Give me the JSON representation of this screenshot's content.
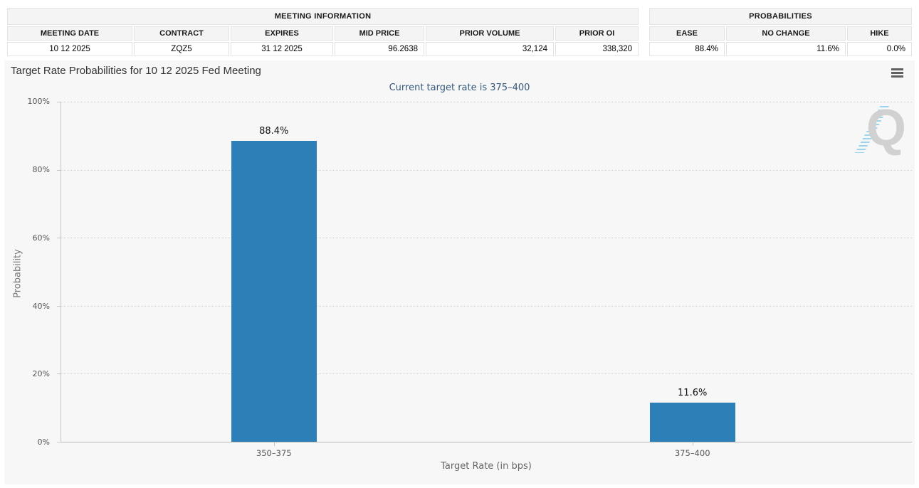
{
  "meeting_information": {
    "title": "MEETING INFORMATION",
    "columns": [
      "MEETING DATE",
      "CONTRACT",
      "EXPIRES",
      "MID PRICE",
      "PRIOR VOLUME",
      "PRIOR OI"
    ],
    "values": [
      "10 12 2025",
      "ZQZ5",
      "31 12 2025",
      "96.2638",
      "32,124",
      "338,320"
    ]
  },
  "probabilities": {
    "title": "PROBABILITIES",
    "columns": [
      "EASE",
      "NO CHANGE",
      "HIKE"
    ],
    "values": [
      "88.4%",
      "11.6%",
      "0.0%"
    ]
  },
  "chart_data": {
    "type": "bar",
    "title": "Target Rate Probabilities for 10 12 2025 Fed Meeting",
    "subtitle": "Current target rate is 375–400",
    "xlabel": "Target Rate (in bps)",
    "ylabel": "Probability",
    "categories": [
      "350–375",
      "375–400"
    ],
    "values": [
      88.4,
      11.6
    ],
    "value_labels": [
      "88.4%",
      "11.6%"
    ],
    "ylim": [
      0,
      100
    ],
    "ytick_labels": [
      "0%",
      "20%",
      "40%",
      "60%",
      "80%",
      "100%"
    ],
    "grid": "dotted horizontal gridlines every 20%",
    "legend": "none",
    "bar_color": "#2d7fb8"
  },
  "icons": {
    "context_menu": "hamburger-icon"
  },
  "watermark": {
    "letter": "Q"
  },
  "colors": {
    "bar": "#2d7fb8",
    "subtitle_text": "#35587a",
    "panel_background": "#f7f7f7",
    "axis_line": "#c6c6c6"
  }
}
